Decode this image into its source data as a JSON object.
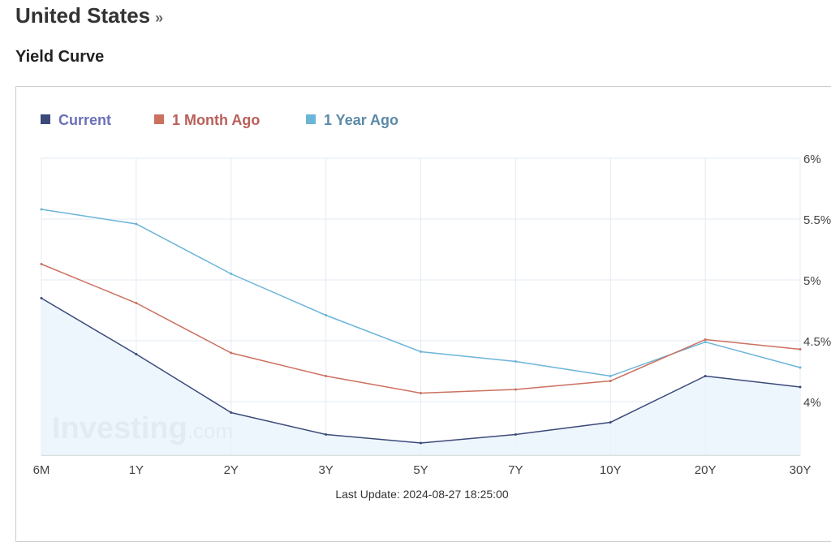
{
  "header": {
    "title": "United States",
    "title_suffix": "»",
    "subtitle": "Yield Curve"
  },
  "chart_data": {
    "type": "line",
    "categories": [
      "6M",
      "1Y",
      "2Y",
      "3Y",
      "5Y",
      "7Y",
      "10Y",
      "20Y",
      "30Y"
    ],
    "yticks": [
      "6%",
      "5.5%",
      "5%",
      "4.5%",
      "4%"
    ],
    "ytick_values": [
      6,
      5.5,
      5,
      4.5,
      4
    ],
    "ylim": [
      3.56,
      6
    ],
    "grid": true,
    "legend": "top-left",
    "series": [
      {
        "name": "Current",
        "color": "#3b4a7a",
        "text_color": "#6b70b8",
        "fill": true,
        "values": [
          4.85,
          4.39,
          3.91,
          3.73,
          3.66,
          3.73,
          3.83,
          4.21,
          4.12
        ]
      },
      {
        "name": "1 Month Ago",
        "color": "#cc7060",
        "text_color": "#b8605a",
        "values": [
          5.13,
          4.81,
          4.4,
          4.21,
          4.07,
          4.1,
          4.17,
          4.51,
          4.43
        ]
      },
      {
        "name": "1 Year Ago",
        "color": "#6bb5d8",
        "text_color": "#5a8aa8",
        "values": [
          5.58,
          5.46,
          5.05,
          4.71,
          4.41,
          4.33,
          4.21,
          4.49,
          4.28
        ]
      }
    ],
    "footer": "Last Update: 2024-08-27 18:25:00",
    "watermark": "Investing.com"
  }
}
